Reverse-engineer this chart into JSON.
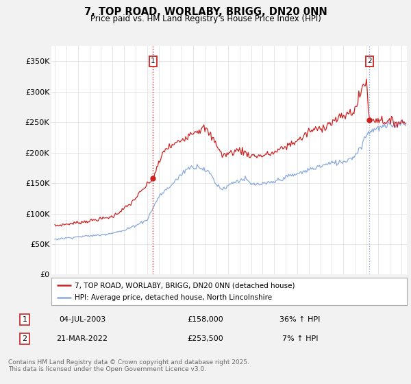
{
  "title": "7, TOP ROAD, WORLABY, BRIGG, DN20 0NN",
  "subtitle": "Price paid vs. HM Land Registry's House Price Index (HPI)",
  "ylabel_ticks": [
    "£0",
    "£50K",
    "£100K",
    "£150K",
    "£200K",
    "£250K",
    "£300K",
    "£350K"
  ],
  "ytick_vals": [
    0,
    50000,
    100000,
    150000,
    200000,
    250000,
    300000,
    350000
  ],
  "ylim": [
    0,
    375000
  ],
  "xlim_start": 1994.7,
  "xlim_end": 2025.5,
  "background_color": "#f2f2f2",
  "plot_bg_color": "#ffffff",
  "red_line_color": "#cc2222",
  "blue_line_color": "#88aadd",
  "grid_color": "#dddddd",
  "ann1_x": 2003.5,
  "ann1_y": 158000,
  "ann2_x": 2022.25,
  "ann2_y": 253500,
  "legend_entry1": "7, TOP ROAD, WORLABY, BRIGG, DN20 0NN (detached house)",
  "legend_entry2": "HPI: Average price, detached house, North Lincolnshire",
  "footer": "Contains HM Land Registry data © Crown copyright and database right 2025.\nThis data is licensed under the Open Government Licence v3.0.",
  "table_rows": [
    {
      "num": "1",
      "date": "04-JUL-2003",
      "price": "£158,000",
      "hpi": "36% ↑ HPI"
    },
    {
      "num": "2",
      "date": "21-MAR-2022",
      "price": "£253,500",
      "hpi": "7% ↑ HPI"
    }
  ]
}
